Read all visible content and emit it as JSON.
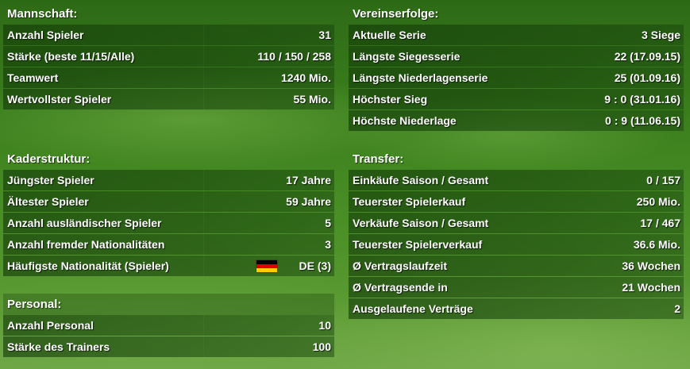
{
  "mannschaft": {
    "title": "Mannschaft:",
    "rows": [
      {
        "label": "Anzahl Spieler",
        "value": "31"
      },
      {
        "label": "Stärke (beste 11/15/Alle)",
        "value": "110 / 150 / 258"
      },
      {
        "label": "Teamwert",
        "value": "1240 Mio."
      },
      {
        "label": "Wertvollster Spieler",
        "value": "55 Mio."
      }
    ]
  },
  "kaderstruktur": {
    "title": "Kaderstruktur:",
    "rows": [
      {
        "label": "Jüngster Spieler",
        "value": "17 Jahre"
      },
      {
        "label": "Ältester Spieler",
        "value": "59 Jahre"
      },
      {
        "label": "Anzahl ausländischer Spieler",
        "value": "5"
      },
      {
        "label": "Anzahl fremder Nationalitäten",
        "value": "3"
      },
      {
        "label": "Häufigste Nationalität (Spieler)",
        "value": "DE (3)",
        "flag_icon": "germany-flag-icon"
      }
    ]
  },
  "personal": {
    "title": "Personal:",
    "rows": [
      {
        "label": "Anzahl Personal",
        "value": "10"
      },
      {
        "label": "Stärke des Trainers",
        "value": "100"
      }
    ]
  },
  "vereinserfolge": {
    "title": "Vereinserfolge:",
    "rows": [
      {
        "label": "Aktuelle Serie",
        "value": "3 Siege"
      },
      {
        "label": "Längste Siegesserie",
        "value": "22 (17.09.15)"
      },
      {
        "label": "Längste Niederlagenserie",
        "value": "25 (01.09.16)"
      },
      {
        "label": "Höchster Sieg",
        "value": "9 : 0 (31.01.16)"
      },
      {
        "label": "Höchste Niederlage",
        "value": "0 : 9 (11.06.15)"
      }
    ]
  },
  "transfer": {
    "title": "Transfer:",
    "rows": [
      {
        "label": "Einkäufe Saison / Gesamt",
        "value": "0 / 157"
      },
      {
        "label": "Teuerster Spielerkauf",
        "value": "250 Mio."
      },
      {
        "label": "Verkäufe Saison / Gesamt",
        "value": "17 / 467"
      },
      {
        "label": "Teuerster Spielerverkauf",
        "value": "36.6 Mio."
      },
      {
        "label": "Ø Vertragslaufzeit",
        "value": "36 Wochen"
      },
      {
        "label": "Ø Vertragsende in",
        "value": "21 Wochen"
      },
      {
        "label": "Ausgelaufene Verträge",
        "value": "2"
      }
    ]
  },
  "colors": {
    "row_bg": "#1c4a0c",
    "text": "#ffffff",
    "flag_black": "#000000",
    "flag_red": "#dd0000",
    "flag_gold": "#ffce00"
  }
}
